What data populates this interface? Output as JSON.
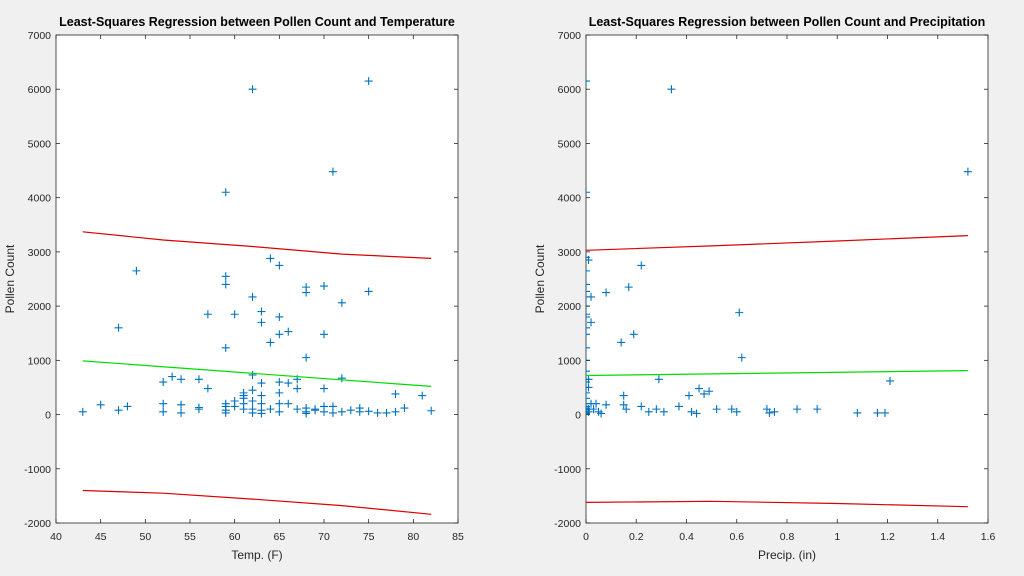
{
  "chart_data": [
    {
      "type": "scatter",
      "title": "Least-Squares Regression between Pollen Count and Temperature",
      "xlabel": "Temp. (F)",
      "ylabel": "Pollen Count",
      "xlim": [
        40,
        85
      ],
      "ylim": [
        -2000,
        7000
      ],
      "xticks": [
        40,
        45,
        50,
        55,
        60,
        65,
        70,
        75,
        80,
        85
      ],
      "xtick_labels": [
        "40",
        "45",
        "50",
        "55",
        "60",
        "65",
        "70",
        "75",
        "80",
        "85"
      ],
      "yticks": [
        -2000,
        -1000,
        0,
        1000,
        2000,
        3000,
        4000,
        5000,
        6000,
        7000
      ],
      "ytick_labels": [
        "-2000",
        "-1000",
        "0",
        "1000",
        "2000",
        "3000",
        "4000",
        "5000",
        "6000",
        "7000"
      ],
      "grid": false,
      "series": [
        {
          "kind": "marker",
          "marker": "+",
          "color": "#0072bd",
          "points": [
            [
              43,
              50
            ],
            [
              45,
              180
            ],
            [
              47,
              80
            ],
            [
              47,
              1600
            ],
            [
              48,
              150
            ],
            [
              49,
              2650
            ],
            [
              52,
              600
            ],
            [
              52,
              200
            ],
            [
              52,
              50
            ],
            [
              53,
              700
            ],
            [
              54,
              650
            ],
            [
              54,
              180
            ],
            [
              54,
              30
            ],
            [
              56,
              650
            ],
            [
              56,
              130
            ],
            [
              56,
              100
            ],
            [
              57,
              1850
            ],
            [
              57,
              480
            ],
            [
              59,
              4100
            ],
            [
              59,
              2550
            ],
            [
              59,
              2400
            ],
            [
              59,
              1230
            ],
            [
              59,
              200
            ],
            [
              59,
              150
            ],
            [
              59,
              80
            ],
            [
              59,
              30
            ],
            [
              60,
              1850
            ],
            [
              60,
              250
            ],
            [
              60,
              150
            ],
            [
              61,
              400
            ],
            [
              61,
              350
            ],
            [
              61,
              300
            ],
            [
              61,
              200
            ],
            [
              61,
              100
            ],
            [
              62,
              6000
            ],
            [
              62,
              2170
            ],
            [
              62,
              730
            ],
            [
              62,
              450
            ],
            [
              62,
              250
            ],
            [
              62,
              100
            ],
            [
              62,
              30
            ],
            [
              63,
              1900
            ],
            [
              63,
              1700
            ],
            [
              63,
              580
            ],
            [
              63,
              350
            ],
            [
              63,
              200
            ],
            [
              63,
              80
            ],
            [
              63,
              20
            ],
            [
              64,
              2880
            ],
            [
              64,
              1330
            ],
            [
              64,
              100
            ],
            [
              65,
              2750
            ],
            [
              65,
              1800
            ],
            [
              65,
              1480
            ],
            [
              65,
              600
            ],
            [
              65,
              400
            ],
            [
              65,
              200
            ],
            [
              65,
              50
            ],
            [
              66,
              1530
            ],
            [
              66,
              580
            ],
            [
              66,
              200
            ],
            [
              67,
              650
            ],
            [
              67,
              480
            ],
            [
              67,
              100
            ],
            [
              68,
              2350
            ],
            [
              68,
              2250
            ],
            [
              68,
              1050
            ],
            [
              68,
              120
            ],
            [
              68,
              50
            ],
            [
              68,
              20
            ],
            [
              69,
              100
            ],
            [
              69,
              80
            ],
            [
              70,
              2370
            ],
            [
              70,
              1480
            ],
            [
              70,
              480
            ],
            [
              70,
              150
            ],
            [
              70,
              50
            ],
            [
              71,
              4480
            ],
            [
              71,
              150
            ],
            [
              71,
              30
            ],
            [
              72,
              2060
            ],
            [
              72,
              670
            ],
            [
              72,
              50
            ],
            [
              73,
              80
            ],
            [
              74,
              120
            ],
            [
              74,
              50
            ],
            [
              75,
              6150
            ],
            [
              75,
              2270
            ],
            [
              75,
              60
            ],
            [
              76,
              30
            ],
            [
              77,
              30
            ],
            [
              78,
              50
            ],
            [
              78,
              380
            ],
            [
              79,
              120
            ],
            [
              81,
              350
            ],
            [
              82,
              70
            ]
          ]
        },
        {
          "kind": "line",
          "color": "#00dd00",
          "points": [
            [
              43,
              990
            ],
            [
              82,
              520
            ]
          ]
        },
        {
          "kind": "line",
          "color": "#dd0000",
          "points": [
            [
              43,
              3370
            ],
            [
              52,
              3220
            ],
            [
              62,
              3100
            ],
            [
              72,
              2960
            ],
            [
              82,
              2880
            ]
          ]
        },
        {
          "kind": "line",
          "color": "#dd0000",
          "points": [
            [
              43,
              -1400
            ],
            [
              52,
              -1450
            ],
            [
              62,
              -1560
            ],
            [
              72,
              -1680
            ],
            [
              82,
              -1840
            ]
          ]
        }
      ]
    },
    {
      "type": "scatter",
      "title": "Least-Squares Regression between Pollen Count and Precipitation",
      "xlabel": "Precip. (in)",
      "ylabel": "Pollen Count",
      "xlim": [
        0,
        1.6
      ],
      "ylim": [
        -2000,
        7000
      ],
      "xticks": [
        0,
        0.2,
        0.4,
        0.6,
        0.8,
        1,
        1.2,
        1.4,
        1.6
      ],
      "xtick_labels": [
        "0",
        "0.2",
        "0.4",
        "0.6",
        "0.8",
        "1",
        "1.2",
        "1.4",
        "1.6"
      ],
      "yticks": [
        -2000,
        -1000,
        0,
        1000,
        2000,
        3000,
        4000,
        5000,
        6000,
        7000
      ],
      "ytick_labels": [
        "-2000",
        "-1000",
        "0",
        "1000",
        "2000",
        "3000",
        "4000",
        "5000",
        "6000",
        "7000"
      ],
      "grid": false,
      "series": [
        {
          "kind": "marker",
          "marker": "+",
          "color": "#0072bd",
          "points": [
            [
              0,
              6150
            ],
            [
              0,
              4100
            ],
            [
              0,
              2900
            ],
            [
              0,
              2650
            ],
            [
              0,
              2400
            ],
            [
              0,
              2270
            ],
            [
              0,
              2170
            ],
            [
              0,
              2000
            ],
            [
              0,
              1850
            ],
            [
              0,
              1800
            ],
            [
              0,
              1600
            ],
            [
              0,
              1480
            ],
            [
              0,
              1230
            ],
            [
              0,
              1000
            ],
            [
              0,
              800
            ],
            [
              0,
              650
            ],
            [
              0,
              600
            ],
            [
              0,
              500
            ],
            [
              0,
              400
            ],
            [
              0,
              300
            ],
            [
              0,
              200
            ],
            [
              0,
              150
            ],
            [
              0,
              120
            ],
            [
              0,
              100
            ],
            [
              0,
              80
            ],
            [
              0,
              50
            ],
            [
              0,
              30
            ],
            [
              0,
              20
            ],
            [
              0.01,
              2850
            ],
            [
              0.01,
              650
            ],
            [
              0.01,
              500
            ],
            [
              0.01,
              100
            ],
            [
              0.01,
              50
            ],
            [
              0.02,
              2170
            ],
            [
              0.02,
              1700
            ],
            [
              0.02,
              200
            ],
            [
              0.03,
              100
            ],
            [
              0.04,
              200
            ],
            [
              0.05,
              50
            ],
            [
              0.06,
              20
            ],
            [
              0.08,
              2250
            ],
            [
              0.08,
              180
            ],
            [
              0.14,
              1330
            ],
            [
              0.15,
              350
            ],
            [
              0.15,
              180
            ],
            [
              0.16,
              100
            ],
            [
              0.17,
              2350
            ],
            [
              0.19,
              1480
            ],
            [
              0.22,
              2750
            ],
            [
              0.22,
              150
            ],
            [
              0.25,
              50
            ],
            [
              0.28,
              100
            ],
            [
              0.29,
              650
            ],
            [
              0.31,
              50
            ],
            [
              0.34,
              6000
            ],
            [
              0.37,
              150
            ],
            [
              0.41,
              350
            ],
            [
              0.42,
              50
            ],
            [
              0.44,
              20
            ],
            [
              0.45,
              480
            ],
            [
              0.47,
              380
            ],
            [
              0.49,
              430
            ],
            [
              0.52,
              100
            ],
            [
              0.58,
              100
            ],
            [
              0.6,
              50
            ],
            [
              0.61,
              1880
            ],
            [
              0.62,
              1050
            ],
            [
              0.72,
              100
            ],
            [
              0.73,
              30
            ],
            [
              0.75,
              50
            ],
            [
              0.84,
              100
            ],
            [
              0.92,
              100
            ],
            [
              1.08,
              30
            ],
            [
              1.16,
              30
            ],
            [
              1.19,
              30
            ],
            [
              1.21,
              620
            ],
            [
              1.52,
              4480
            ]
          ]
        },
        {
          "kind": "line",
          "color": "#00dd00",
          "points": [
            [
              0,
              720
            ],
            [
              1.52,
              810
            ]
          ]
        },
        {
          "kind": "line",
          "color": "#dd0000",
          "points": [
            [
              0,
              3030
            ],
            [
              0.5,
              3110
            ],
            [
              1.0,
              3200
            ],
            [
              1.52,
              3300
            ]
          ]
        },
        {
          "kind": "line",
          "color": "#dd0000",
          "points": [
            [
              0,
              -1620
            ],
            [
              0.5,
              -1600
            ],
            [
              1.0,
              -1640
            ],
            [
              1.52,
              -1700
            ]
          ]
        }
      ]
    }
  ]
}
